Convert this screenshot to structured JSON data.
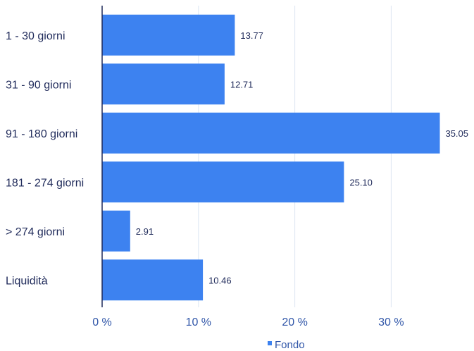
{
  "chart_data": {
    "type": "bar",
    "orientation": "horizontal",
    "categories": [
      "1 - 30 giorni",
      "31 - 90 giorni",
      "91 - 180 giorni",
      "181 - 274 giorni",
      "> 274 giorni",
      "Liquidità"
    ],
    "series": [
      {
        "name": "Fondo",
        "values": [
          13.77,
          12.71,
          35.05,
          25.1,
          2.91,
          10.46
        ],
        "color": "#3d82f0"
      }
    ],
    "value_labels": [
      "13.77",
      "12.71",
      "35.05",
      "25.10",
      "2.91",
      "10.46"
    ],
    "xticks": [
      0,
      10,
      20,
      30
    ],
    "xtick_labels": [
      "0 %",
      "10 %",
      "20 %",
      "30 %"
    ],
    "xlim": [
      0,
      35.05
    ],
    "grid": true,
    "legend_position": "bottom-center",
    "colors": {
      "bar": "#3d82f0",
      "axis": "#1f2a5a",
      "grid": "#dce6f2",
      "tick_text": "#2f55a8"
    }
  }
}
